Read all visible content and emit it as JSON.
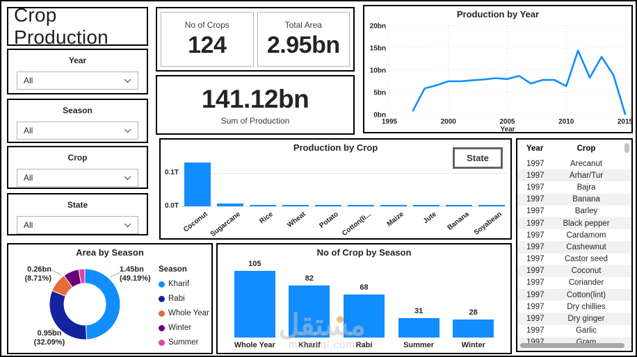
{
  "page": {
    "title": "Crop Production"
  },
  "filters": [
    {
      "label": "Year",
      "value": "All"
    },
    {
      "label": "Season",
      "value": "All"
    },
    {
      "label": "Crop",
      "value": "All"
    },
    {
      "label": "State",
      "value": "All"
    }
  ],
  "kpis": {
    "crops": {
      "label": "No of Crops",
      "value": "124"
    },
    "area": {
      "label": "Total Area",
      "value": "2.95bn"
    },
    "production": {
      "value": "141.12bn",
      "label": "Sum of Production"
    }
  },
  "buttons": {
    "state": "State"
  },
  "colors": {
    "primary": "#118DFF",
    "navy": "#12239E",
    "orange": "#E66C37",
    "purple": "#6B007B",
    "pink": "#E044A7",
    "text": "#252423"
  },
  "chart_data": [
    {
      "id": "production_by_year",
      "type": "line",
      "title": "Production by Year",
      "xlabel": "Year",
      "x": [
        1997,
        1998,
        1999,
        2000,
        2001,
        2002,
        2003,
        2004,
        2005,
        2006,
        2007,
        2008,
        2009,
        2010,
        2011,
        2012,
        2013,
        2014,
        2015
      ],
      "values": [
        0.9,
        5.9,
        6.6,
        7.5,
        7.5,
        7.7,
        7.9,
        8.2,
        8.0,
        8.7,
        7.0,
        7.8,
        7.8,
        6.4,
        14.4,
        8.3,
        13.0,
        8.9,
        0.1
      ],
      "ylim": [
        0,
        20
      ],
      "xlim": [
        1995,
        2015
      ],
      "grid": true,
      "yticks": [
        {
          "v": 0,
          "label": "0bn"
        },
        {
          "v": 5,
          "label": "5bn"
        },
        {
          "v": 10,
          "label": "10bn"
        },
        {
          "v": 15,
          "label": "15bn"
        },
        {
          "v": 20,
          "label": "20bn"
        }
      ],
      "xticks": [
        {
          "v": 1995,
          "label": "1995"
        },
        {
          "v": 2000,
          "label": "2000"
        },
        {
          "v": 2005,
          "label": "2005"
        },
        {
          "v": 2010,
          "label": "2010"
        },
        {
          "v": 2015,
          "label": "2015"
        }
      ],
      "line_color": "#118DFF"
    },
    {
      "id": "production_by_crop",
      "type": "bar",
      "title": "Production by Crop",
      "categories": [
        "Coconut",
        "Sugarcane",
        "Rice",
        "Wheat",
        "Potato",
        "Cotton(li...",
        "Maize",
        "Jute",
        "Banana",
        "Soyabean"
      ],
      "values": [
        0.131,
        0.008,
        0.004,
        0.004,
        0.003,
        0.003,
        0.003,
        0.003,
        0.003,
        0.002
      ],
      "ylim": [
        0,
        0.2
      ],
      "yticks": [
        {
          "v": 0,
          "label": "0.0T"
        },
        {
          "v": 0.1,
          "label": "0.1T"
        }
      ],
      "bar_color": "#118DFF"
    },
    {
      "id": "area_by_season",
      "type": "pie",
      "title": "Area by Season",
      "legend_title": "Season",
      "slices": [
        {
          "name": "Kharif",
          "pct": 49.19,
          "color": "#118DFF",
          "label_value": "1.45bn",
          "label_pct": "(49.19%)"
        },
        {
          "name": "Rabi",
          "pct": 32.09,
          "color": "#12239E",
          "label_value": "0.95bn",
          "label_pct": "(32.09%)"
        },
        {
          "name": "Whole Year",
          "pct": 8.71,
          "color": "#E66C37",
          "label_value": "0.26bn",
          "label_pct": "(8.71%)"
        },
        {
          "name": "Winter",
          "pct": 7.2,
          "color": "#6B007B"
        },
        {
          "name": "Summer",
          "pct": 2.81,
          "color": "#E044A7"
        }
      ]
    },
    {
      "id": "no_of_crop_by_season",
      "type": "bar",
      "title": "No of Crop by Season",
      "categories": [
        "Whole Year",
        "Kharif",
        "Rabi",
        "Summer",
        "Winter"
      ],
      "values": [
        105,
        82,
        68,
        31,
        28
      ],
      "bar_color": "#118DFF",
      "data_labels": true
    }
  ],
  "table": {
    "columns": [
      "Year",
      "Crop"
    ],
    "rows": [
      [
        "1997",
        "Arecanut"
      ],
      [
        "1997",
        "Arhar/Tur"
      ],
      [
        "1997",
        "Bajra"
      ],
      [
        "1997",
        "Banana"
      ],
      [
        "1997",
        "Barley"
      ],
      [
        "1997",
        "Black pepper"
      ],
      [
        "1997",
        "Cardamom"
      ],
      [
        "1997",
        "Cashewnut"
      ],
      [
        "1997",
        "Castor seed"
      ],
      [
        "1997",
        "Coconut"
      ],
      [
        "1997",
        "Coriander"
      ],
      [
        "1997",
        "Cotton(lint)"
      ],
      [
        "1997",
        "Dry chillies"
      ],
      [
        "1997",
        "Dry ginger"
      ],
      [
        "1997",
        "Garlic"
      ],
      [
        "1997",
        "Gram"
      ]
    ]
  },
  "watermark": {
    "text": "مستقل",
    "domain": "mostaql.com"
  }
}
